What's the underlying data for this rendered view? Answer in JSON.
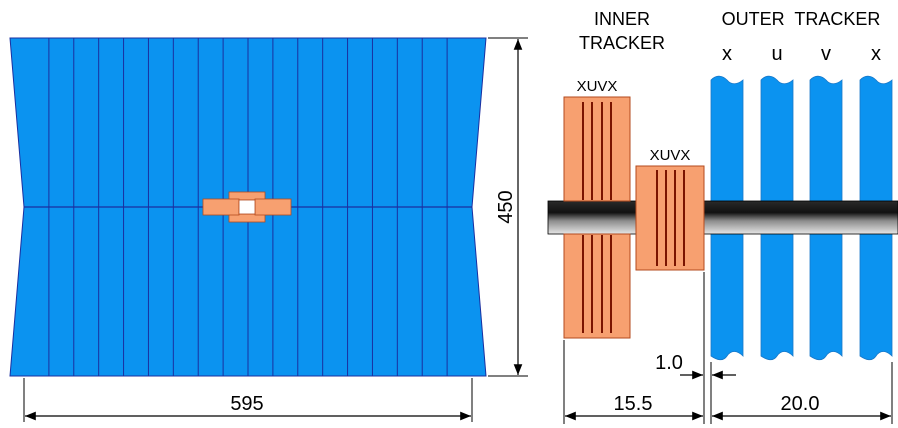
{
  "colors": {
    "station_blue": "#0b93f0",
    "station_edge": "#1a2fa0",
    "inner_orange": "#f7a070",
    "inner_edge": "#b34a1e",
    "straw_dark": "#7a1400",
    "beampipe_dark": "#111111",
    "beampipe_light": "#d9d9d9"
  },
  "front_view": {
    "width_label": "595",
    "height_label": "450"
  },
  "side_view": {
    "inner_title_line1": "INNER",
    "inner_title_line2": "TRACKER",
    "outer_title": "OUTER  TRACKER",
    "inner_station1_layers": "XUVX",
    "inner_station2_layers": "XUVX",
    "outer_layers": [
      "x",
      "u",
      "v",
      "x"
    ],
    "gap_label": "1.0",
    "inner_span_label": "15.5",
    "outer_span_label": "20.0"
  }
}
